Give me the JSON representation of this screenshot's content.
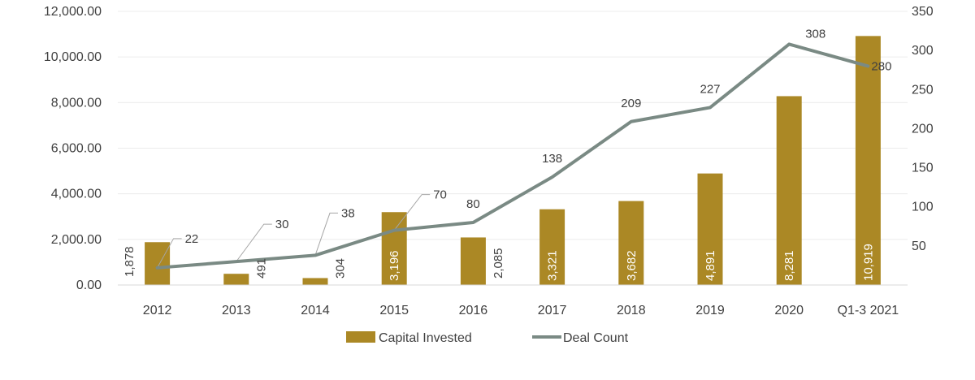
{
  "chart_data": {
    "type": "bar",
    "categories": [
      "2012",
      "2013",
      "2014",
      "2015",
      "2016",
      "2017",
      "2018",
      "2019",
      "2020",
      "Q1-3 2021"
    ],
    "series": [
      {
        "name": "Capital Invested",
        "type": "bar",
        "axis": "left",
        "color": "#AB8825",
        "values": [
          1878,
          491,
          304,
          3196,
          2085,
          3321,
          3682,
          4891,
          8281,
          10919
        ],
        "labels": [
          "1,878",
          "491",
          "304",
          "3,196",
          "2,085",
          "3,321",
          "3,682",
          "4,891",
          "8,281",
          "10,919"
        ]
      },
      {
        "name": "Deal Count",
        "type": "line",
        "axis": "right",
        "color": "#7A8A84",
        "values": [
          22,
          30,
          38,
          70,
          80,
          138,
          209,
          227,
          308,
          280
        ],
        "labels": [
          "22",
          "30",
          "38",
          "70",
          "80",
          "138",
          "209",
          "227",
          "308",
          "280"
        ]
      }
    ],
    "y_left": {
      "min": 0,
      "max": 12000,
      "ticks": [
        0,
        2000,
        4000,
        6000,
        8000,
        10000,
        12000
      ],
      "tick_labels": [
        "0.00",
        "2,000.00",
        "4,000.00",
        "6,000.00",
        "8,000.00",
        "10,000.00",
        "12,000.00"
      ]
    },
    "y_right": {
      "min": 0,
      "max": 350,
      "ticks": [
        50,
        100,
        150,
        200,
        250,
        300,
        350
      ],
      "tick_labels": [
        "50",
        "100",
        "150",
        "200",
        "250",
        "300",
        "350"
      ]
    },
    "grid": true,
    "legend_position": "bottom",
    "title": "",
    "xlabel": "",
    "ylabel": ""
  }
}
